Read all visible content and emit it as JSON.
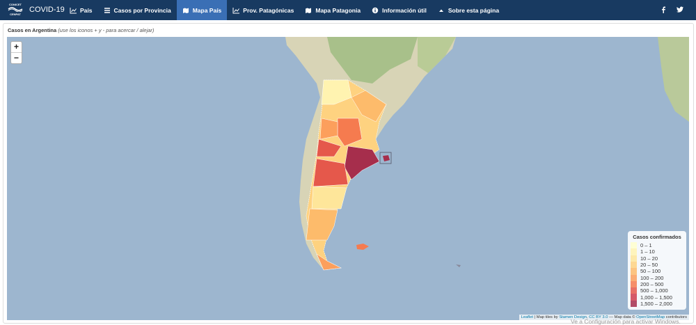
{
  "navbar": {
    "logo": [
      "CONICET",
      "CENPAT"
    ],
    "brand": "COVID-19",
    "items": [
      {
        "label": "País",
        "icon": "chart",
        "active": false
      },
      {
        "label": "Casos por Provincia",
        "icon": "list",
        "active": false
      },
      {
        "label": "Mapa País",
        "icon": "map",
        "active": true
      },
      {
        "label": "Prov. Patagónicas",
        "icon": "chart",
        "active": false
      },
      {
        "label": "Mapa Patagonia",
        "icon": "map",
        "active": false
      },
      {
        "label": "Información útil",
        "icon": "info",
        "active": false
      },
      {
        "label": "Sobre esta página",
        "icon": "caret",
        "active": false
      }
    ]
  },
  "panel": {
    "title": "Casos en Argentina",
    "hint": "(use los iconos + y - para acercar / alejar)"
  },
  "map": {
    "zoom_in": "+",
    "zoom_out": "−",
    "legend": {
      "title": "Casos confirmados",
      "items": [
        {
          "label": "0 – 1",
          "color": "#ffffcc"
        },
        {
          "label": "1 – 10",
          "color": "#fff3b0"
        },
        {
          "label": "10 – 20",
          "color": "#fee69a"
        },
        {
          "label": "20 – 50",
          "color": "#fed280"
        },
        {
          "label": "50 – 100",
          "color": "#fdbb6b"
        },
        {
          "label": "100 – 200",
          "color": "#fc9f5c"
        },
        {
          "label": "200 – 500",
          "color": "#f57b4f"
        },
        {
          "label": "500 – 1,000",
          "color": "#e5584b"
        },
        {
          "label": "1,000 – 1,500",
          "color": "#cf3d4d"
        },
        {
          "label": "1,500 – 2,000",
          "color": "#a62e4c"
        }
      ]
    },
    "attribution": [
      {
        "text": "Leaflet",
        "link": true
      },
      {
        "text": " | Map tiles by ",
        "link": false
      },
      {
        "text": "Stamen Design",
        "link": true
      },
      {
        "text": ", ",
        "link": false
      },
      {
        "text": "CC BY 3.0",
        "link": true
      },
      {
        "text": " — Map data © ",
        "link": false
      },
      {
        "text": "OpenStreetMap",
        "link": true
      },
      {
        "text": " contributors",
        "link": false
      }
    ]
  },
  "watermark": "Ve a Configuración para activar Windows."
}
